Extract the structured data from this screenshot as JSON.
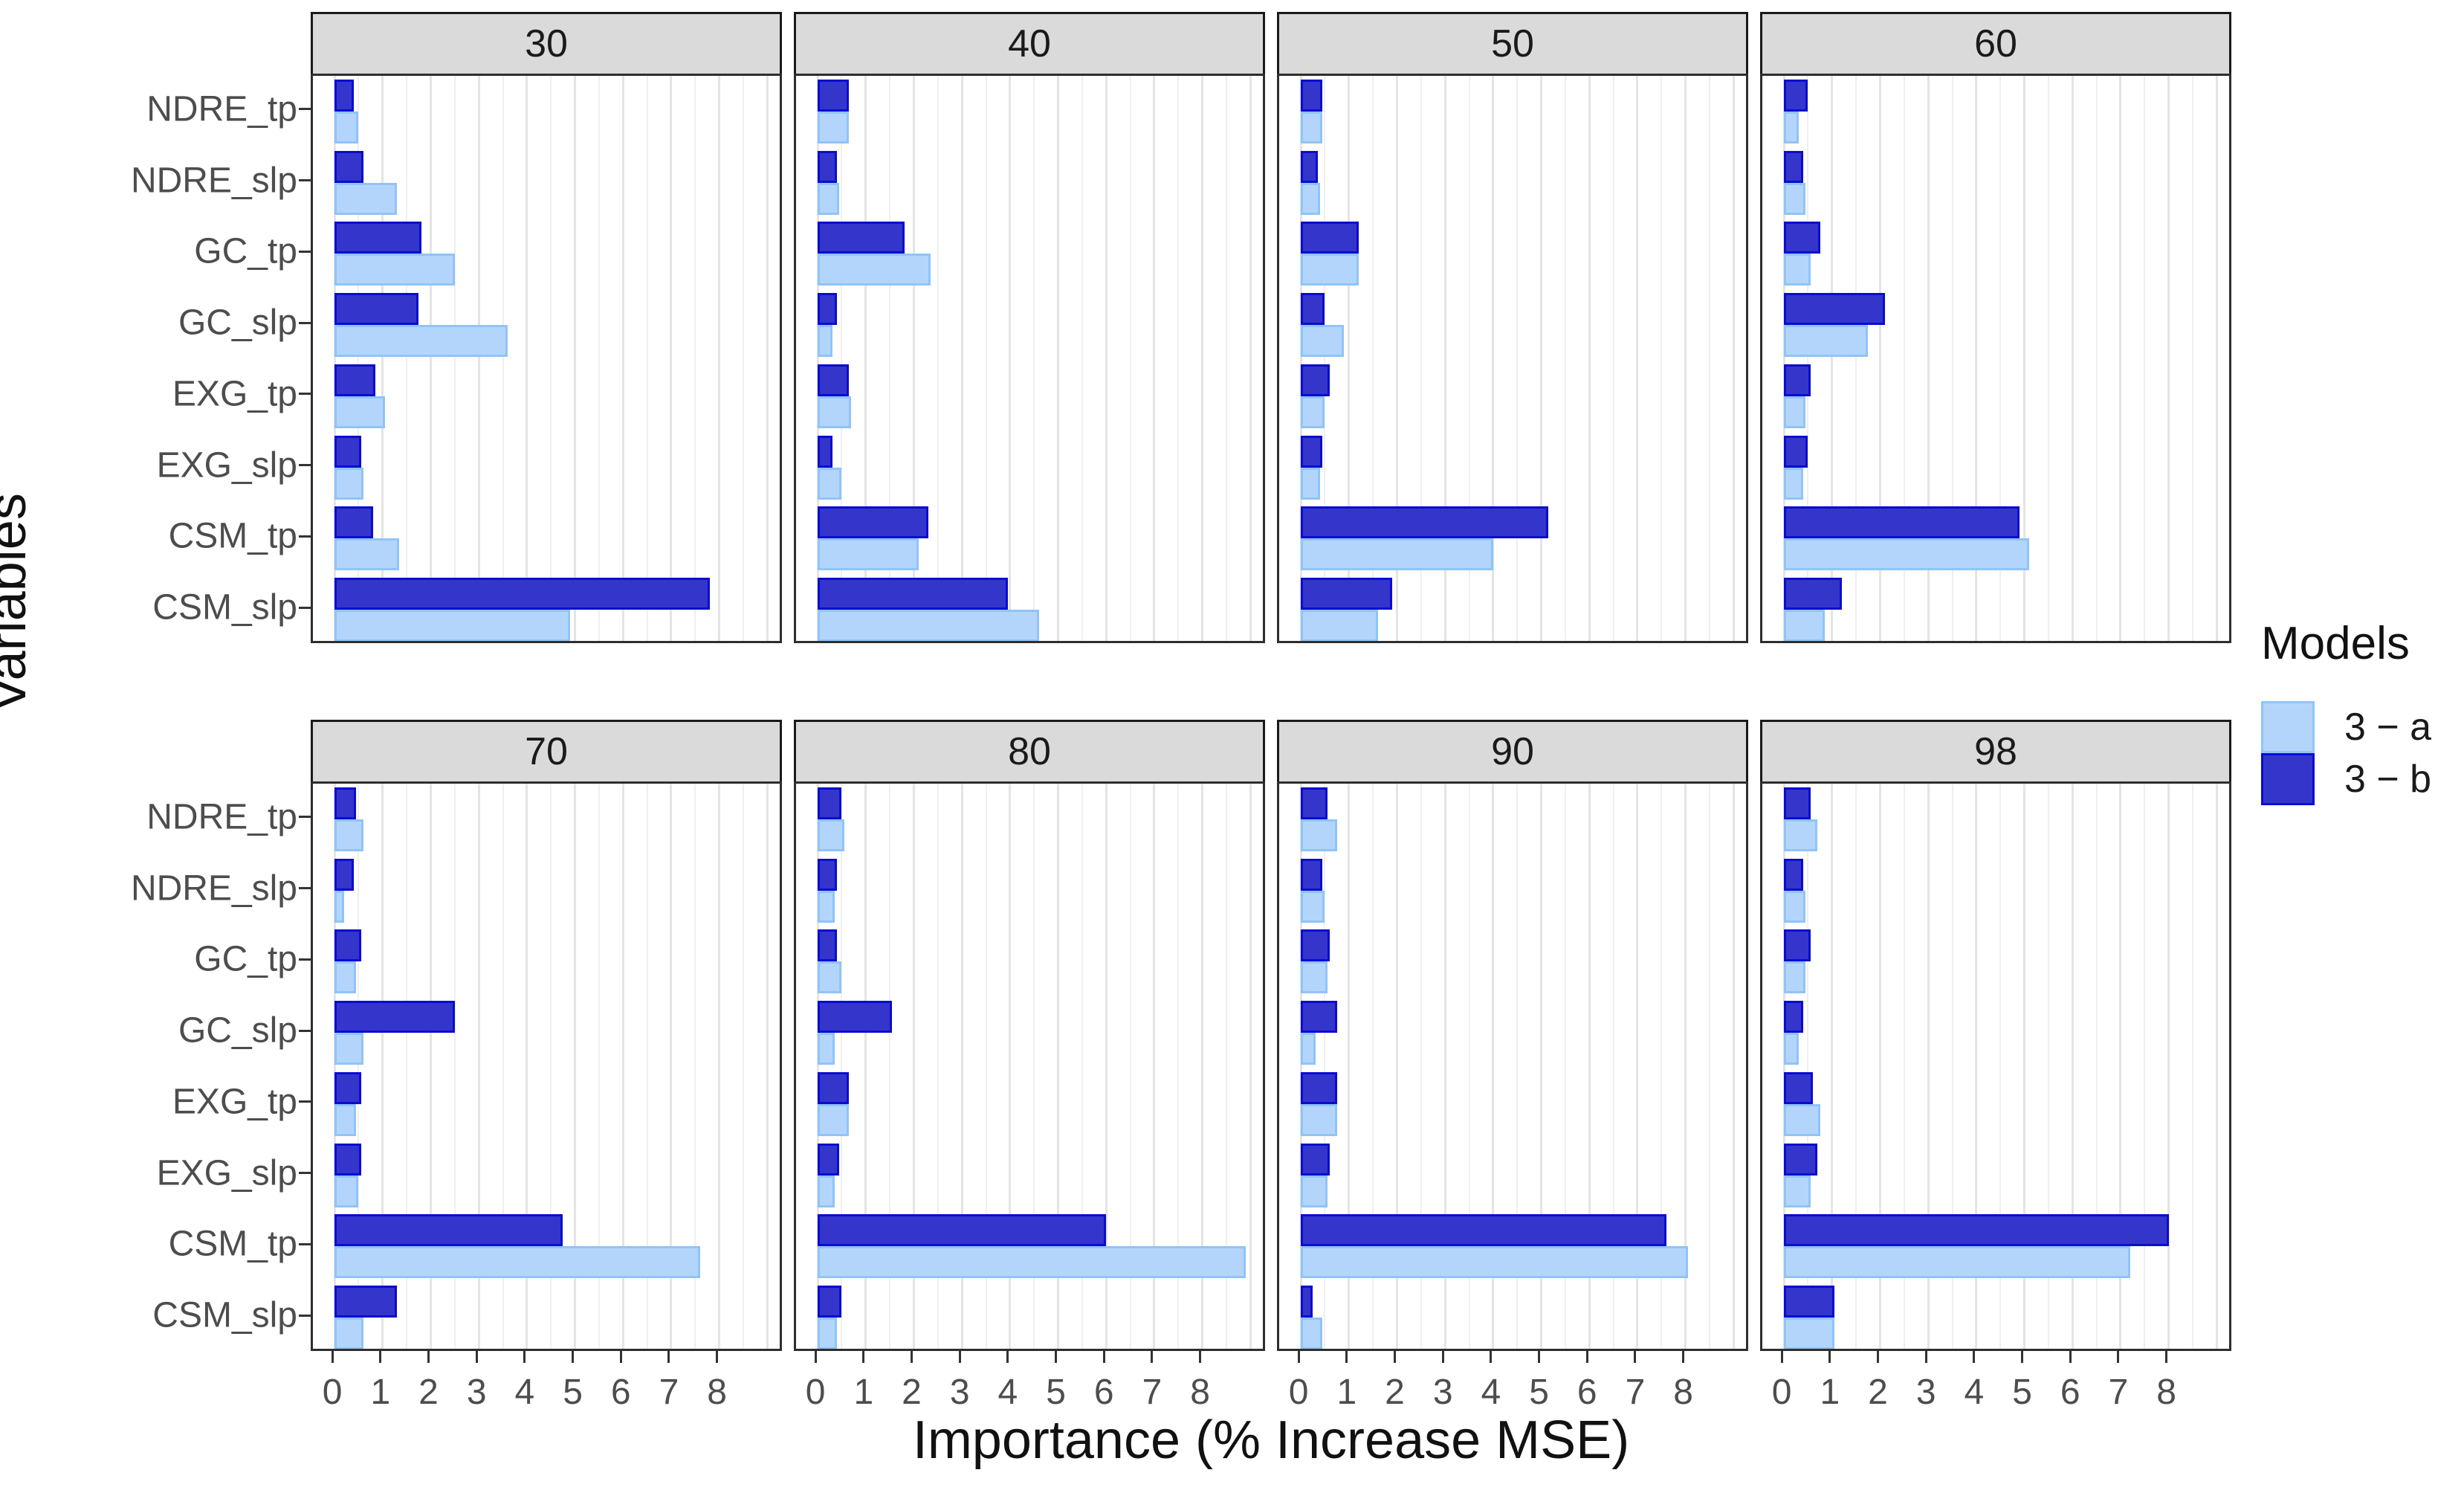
{
  "figure": {
    "y_axis_title": "Variables",
    "x_axis_title": "Importance (% Increase MSE)",
    "legend": {
      "title": "Models",
      "entries": [
        {
          "label": "3 − a",
          "style": "light"
        },
        {
          "label": "3 − b",
          "style": "dark"
        }
      ]
    },
    "colors": {
      "light_fill": "#B4D5FB",
      "light_stroke": "#8FC4F8",
      "dark_fill": "#3435CB",
      "dark_stroke": "#0B0CD0",
      "strip_bg": "#DADADA",
      "panel_border": "#2E2E2E",
      "grid_major": "#E4E4E4",
      "grid_minor": "#EFEFEF",
      "axis_text": "#4D4D4D"
    }
  },
  "chart_data": {
    "type": "bar",
    "orientation": "horizontal",
    "title": "",
    "xlabel": "Importance (% Increase MSE)",
    "ylabel": "Variables",
    "legend_title": "Models",
    "legend_position": "right",
    "grid": true,
    "x_ticks": [
      0,
      1,
      2,
      3,
      4,
      5,
      6,
      7,
      8
    ],
    "xlim": [
      -0.45,
      9.35
    ],
    "categories_top_to_bottom": [
      "NDRE_tp",
      "NDRE_slp",
      "GC_tp",
      "GC_slp",
      "EXG_tp",
      "EXG_slp",
      "CSM_tp",
      "CSM_slp"
    ],
    "facets": [
      {
        "label": "30",
        "series": [
          {
            "name": "3 − a",
            "values": [
              0.5,
              1.3,
              2.5,
              3.6,
              1.05,
              0.6,
              1.35,
              4.9
            ]
          },
          {
            "name": "3 − b",
            "values": [
              0.4,
              0.6,
              1.8,
              1.75,
              0.85,
              0.55,
              0.8,
              7.8
            ]
          }
        ]
      },
      {
        "label": "40",
        "series": [
          {
            "name": "3 − a",
            "values": [
              0.65,
              0.45,
              2.35,
              0.3,
              0.7,
              0.5,
              2.1,
              4.6
            ]
          },
          {
            "name": "3 − b",
            "values": [
              0.65,
              0.4,
              1.8,
              0.4,
              0.65,
              0.3,
              2.3,
              3.95
            ]
          }
        ]
      },
      {
        "label": "50",
        "series": [
          {
            "name": "3 − a",
            "values": [
              0.45,
              0.4,
              1.2,
              0.9,
              0.5,
              0.4,
              4.0,
              1.6
            ]
          },
          {
            "name": "3 − b",
            "values": [
              0.45,
              0.35,
              1.2,
              0.5,
              0.6,
              0.45,
              5.15,
              1.9
            ]
          }
        ]
      },
      {
        "label": "60",
        "series": [
          {
            "name": "3 − a",
            "values": [
              0.3,
              0.45,
              0.55,
              1.75,
              0.45,
              0.4,
              5.1,
              0.85
            ]
          },
          {
            "name": "3 − b",
            "values": [
              0.5,
              0.4,
              0.75,
              2.1,
              0.55,
              0.5,
              4.9,
              1.2
            ]
          }
        ]
      },
      {
        "label": "70",
        "series": [
          {
            "name": "3 − a",
            "values": [
              0.6,
              0.2,
              0.45,
              0.6,
              0.45,
              0.5,
              7.6,
              0.6
            ]
          },
          {
            "name": "3 − b",
            "values": [
              0.45,
              0.4,
              0.55,
              2.5,
              0.55,
              0.55,
              4.75,
              1.3
            ]
          }
        ]
      },
      {
        "label": "80",
        "series": [
          {
            "name": "3 − a",
            "values": [
              0.55,
              0.35,
              0.5,
              0.35,
              0.65,
              0.35,
              8.9,
              0.4
            ]
          },
          {
            "name": "3 − b",
            "values": [
              0.5,
              0.4,
              0.4,
              1.55,
              0.65,
              0.45,
              6.0,
              0.5
            ]
          }
        ]
      },
      {
        "label": "90",
        "series": [
          {
            "name": "3 − a",
            "values": [
              0.75,
              0.5,
              0.55,
              0.3,
              0.75,
              0.55,
              8.05,
              0.45
            ]
          },
          {
            "name": "3 − b",
            "values": [
              0.55,
              0.45,
              0.6,
              0.75,
              0.75,
              0.6,
              7.6,
              0.25
            ]
          }
        ]
      },
      {
        "label": "98",
        "series": [
          {
            "name": "3 − a",
            "values": [
              0.7,
              0.45,
              0.45,
              0.3,
              0.75,
              0.55,
              7.2,
              1.05
            ]
          },
          {
            "name": "3 − b",
            "values": [
              0.55,
              0.4,
              0.55,
              0.4,
              0.6,
              0.7,
              8.0,
              1.05
            ]
          }
        ]
      }
    ]
  }
}
